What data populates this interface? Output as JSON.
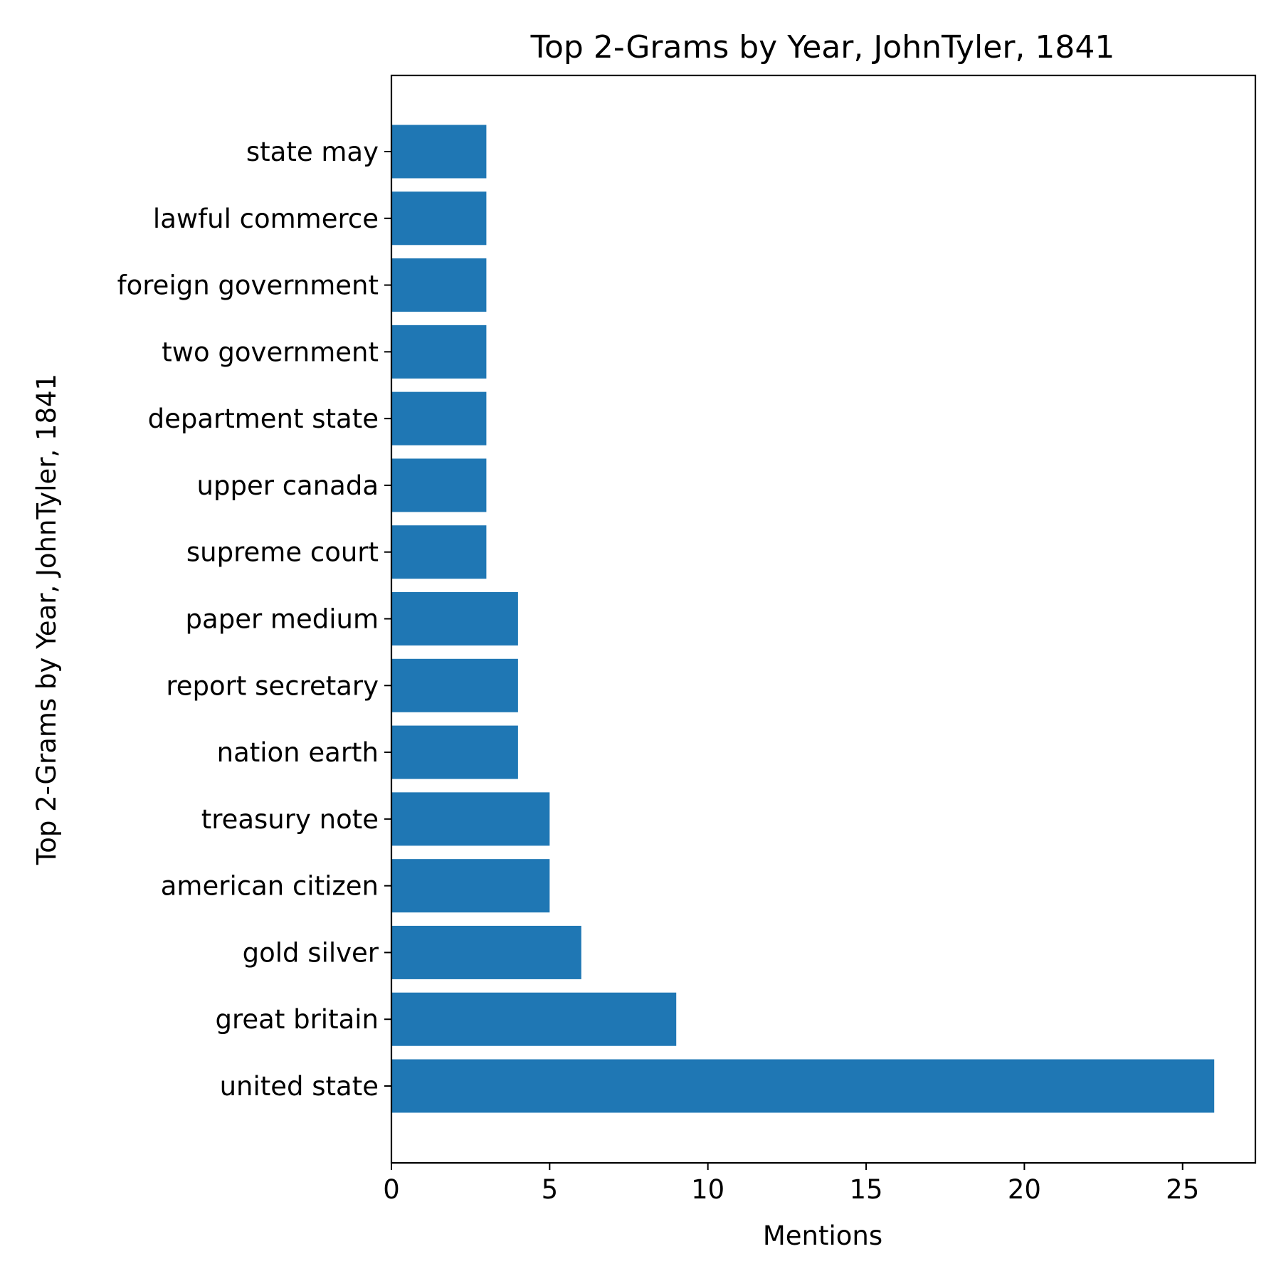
{
  "chart_data": {
    "type": "bar",
    "orientation": "horizontal",
    "title": "Top 2-Grams by Year, JohnTyler, 1841",
    "xlabel": "Mentions",
    "ylabel": "Top 2-Grams by Year, JohnTyler, 1841",
    "xlim": [
      0,
      27.3
    ],
    "xticks": [
      0,
      5,
      10,
      15,
      20,
      25
    ],
    "grid": false,
    "bar_color": "#1f77b4",
    "categories": [
      "united state",
      "great britain",
      "gold silver",
      "american citizen",
      "treasury note",
      "nation earth",
      "report secretary",
      "paper medium",
      "supreme court",
      "upper canada",
      "department state",
      "two government",
      "foreign government",
      "lawful commerce",
      "state may"
    ],
    "values": [
      26,
      9,
      6,
      5,
      5,
      4,
      4,
      4,
      3,
      3,
      3,
      3,
      3,
      3,
      3
    ]
  }
}
